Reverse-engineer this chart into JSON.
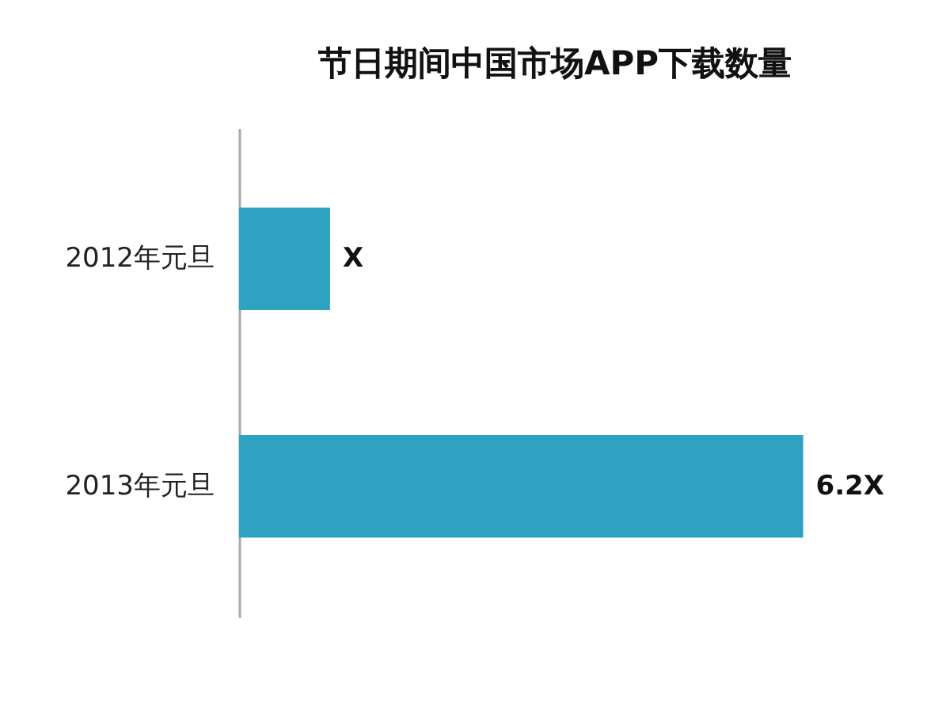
{
  "chart_data": {
    "type": "bar",
    "title": "节日期间中国市场APP下载数量",
    "orientation": "horizontal",
    "categories": [
      "2012年元旦",
      "2013年元旦"
    ],
    "values": [
      1,
      6.2
    ],
    "value_labels": [
      "X",
      "6.2X"
    ],
    "color": "#2ea2c0",
    "grid": false
  }
}
